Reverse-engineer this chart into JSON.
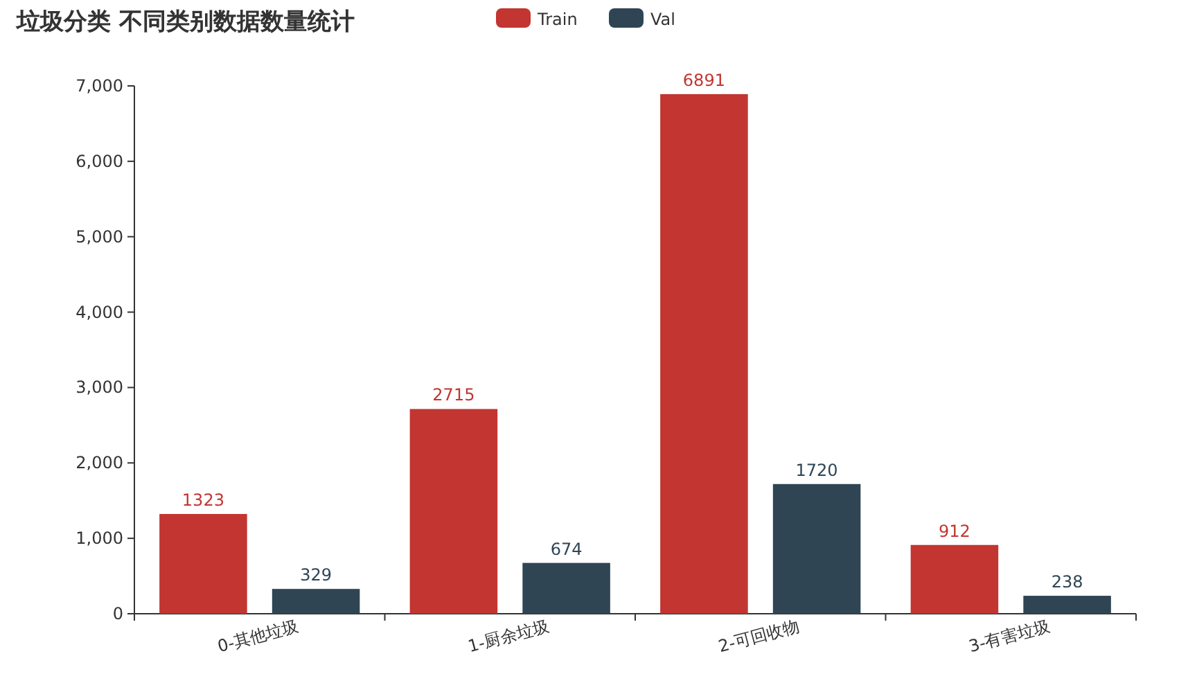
{
  "chart_data": {
    "type": "bar",
    "title": "垃圾分类 不同类别数据数量统计",
    "categories": [
      "0-其他垃圾",
      "1-厨余垃圾",
      "2-可回收物",
      "3-有害垃圾"
    ],
    "series": [
      {
        "name": "Train",
        "color": "#c23531",
        "values": [
          1323,
          2715,
          6891,
          912
        ]
      },
      {
        "name": "Val",
        "color": "#2f4554",
        "values": [
          329,
          674,
          1720,
          238
        ]
      }
    ],
    "ylim": [
      0,
      7000
    ],
    "yticks": [
      {
        "value": 0,
        "label": "0"
      },
      {
        "value": 1000,
        "label": "1,000"
      },
      {
        "value": 2000,
        "label": "2,000"
      },
      {
        "value": 3000,
        "label": "3,000"
      },
      {
        "value": 4000,
        "label": "4,000"
      },
      {
        "value": 5000,
        "label": "5,000"
      },
      {
        "value": 6000,
        "label": "6,000"
      },
      {
        "value": 7000,
        "label": "7,000"
      }
    ],
    "data_labels": true,
    "legend": "top"
  }
}
